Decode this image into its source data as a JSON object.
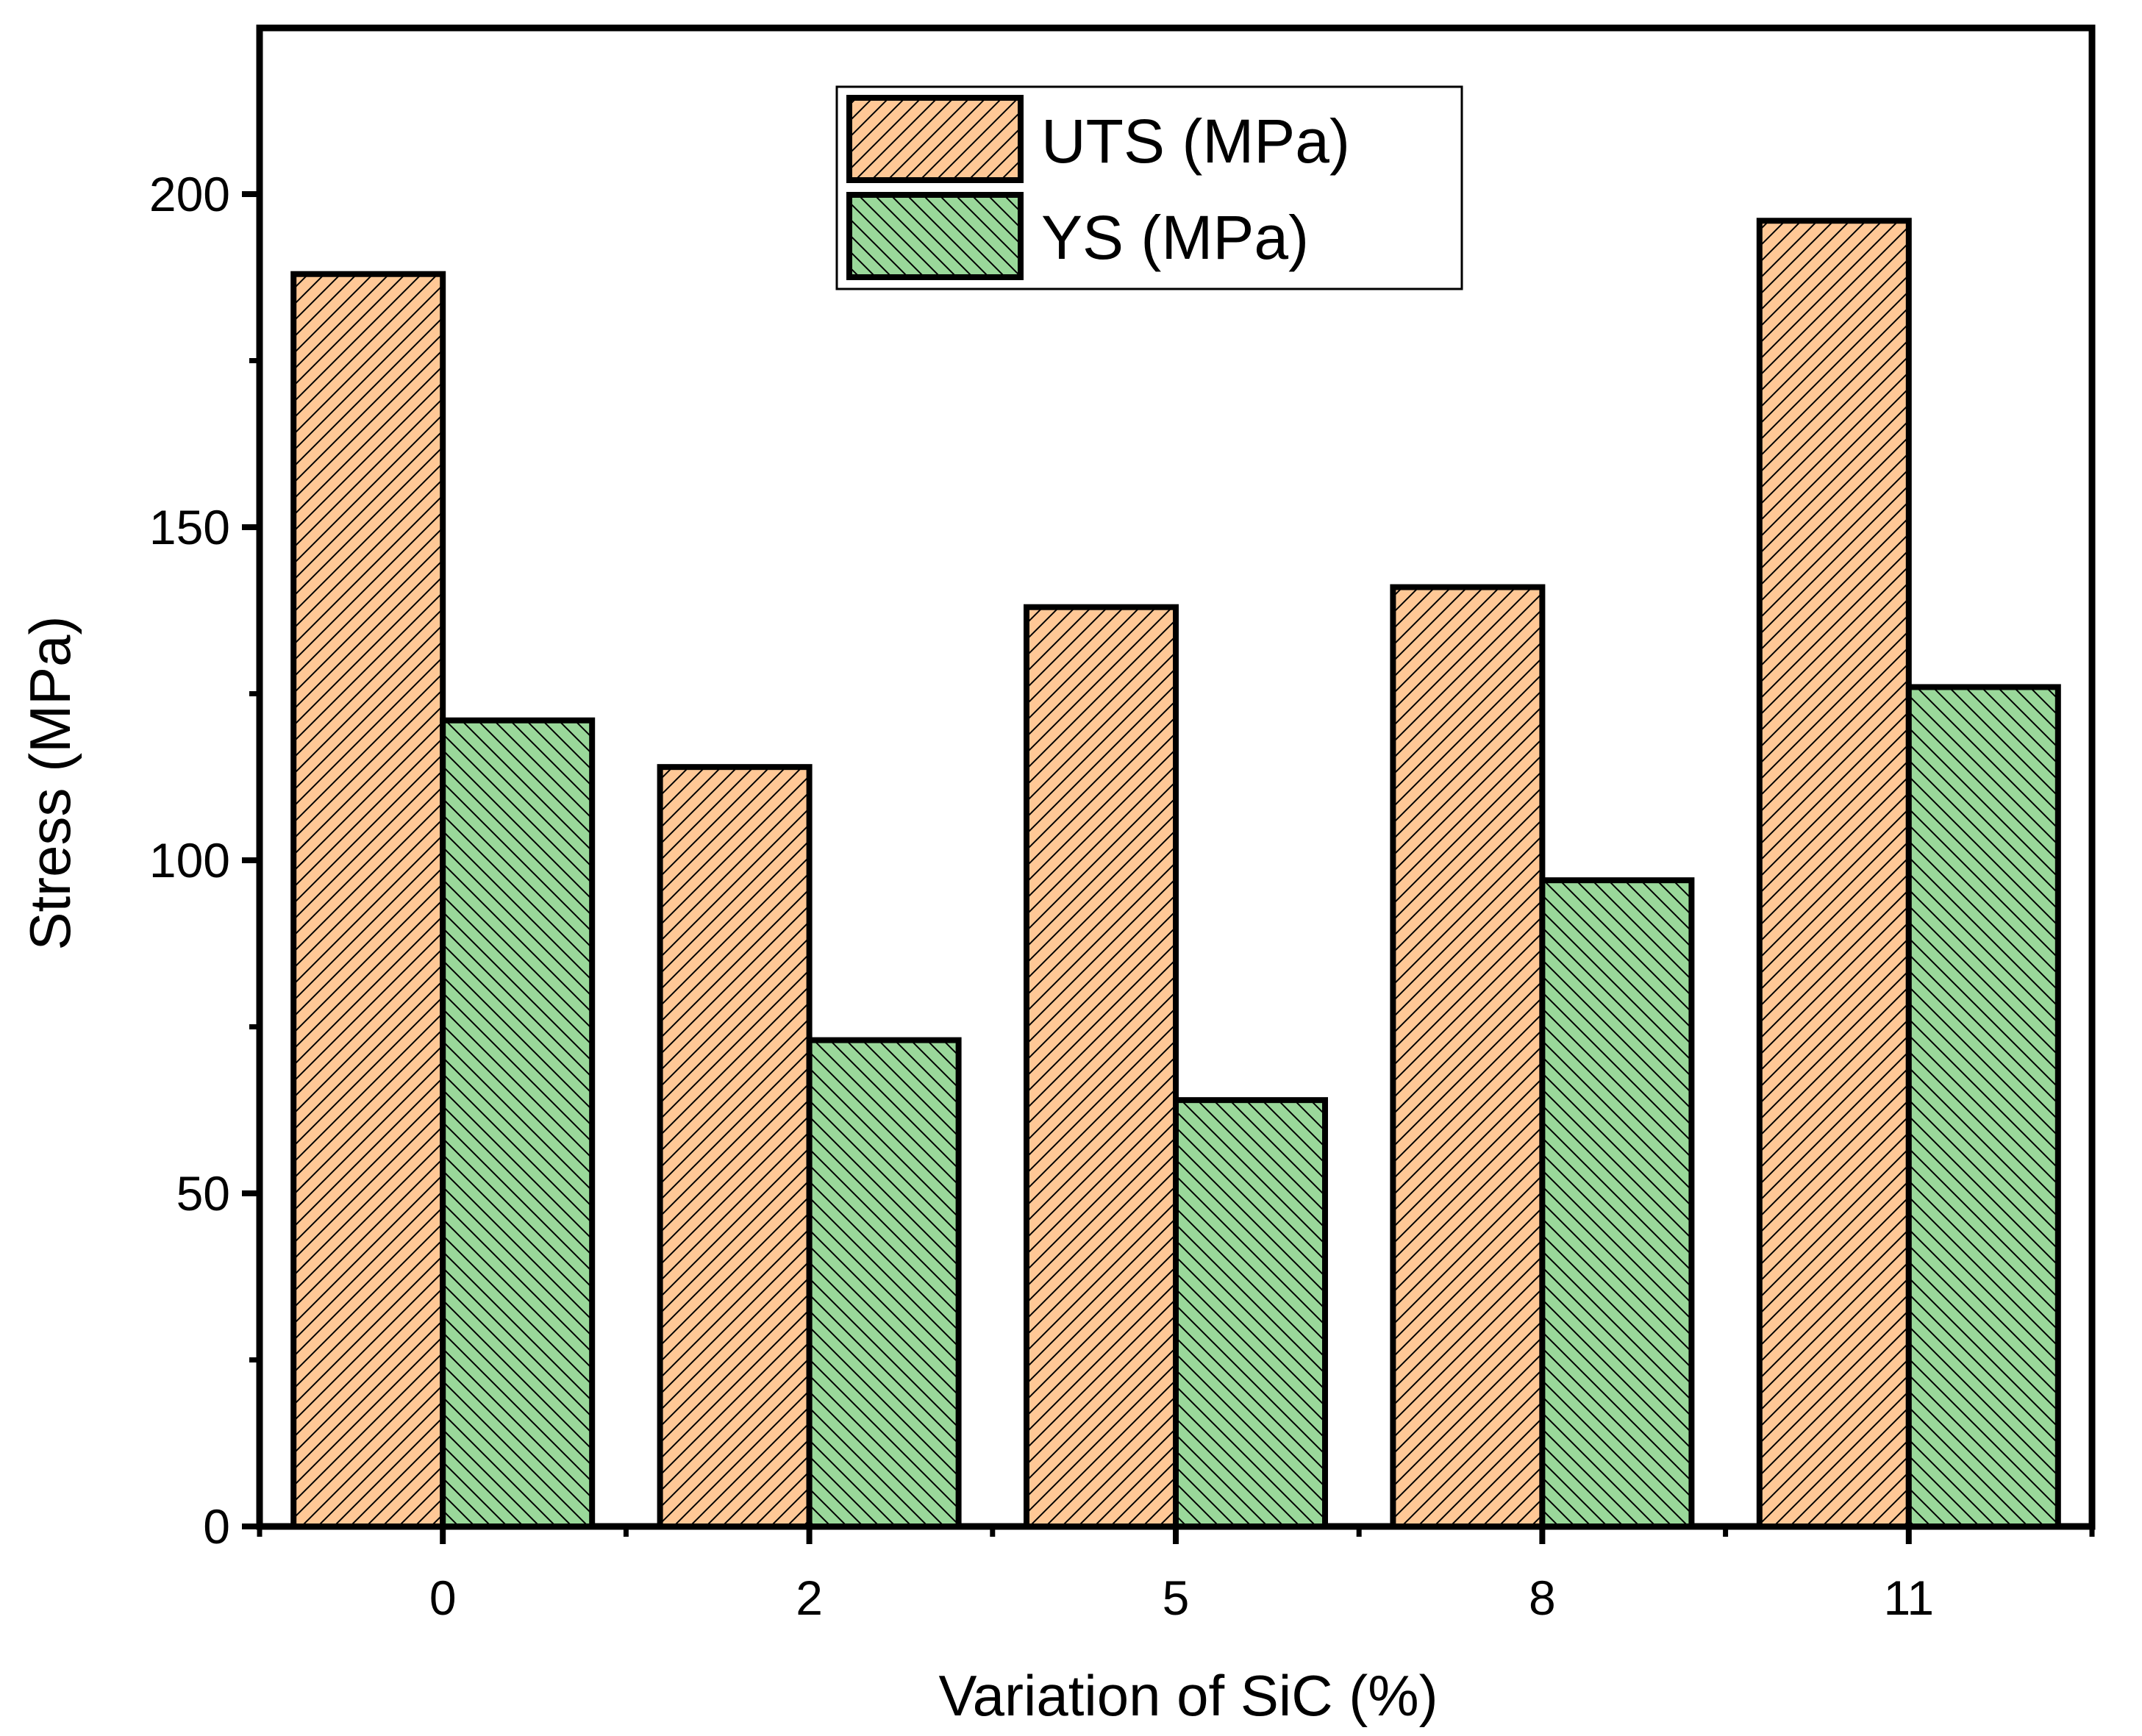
{
  "chart_data": {
    "type": "bar",
    "title": "",
    "xlabel": "Variation of SiC (%)",
    "ylabel": "Stress (MPa)",
    "categories": [
      "0",
      "2",
      "5",
      "8",
      "11"
    ],
    "ylim": [
      0,
      225
    ],
    "yticks": [
      0,
      50,
      100,
      150,
      200
    ],
    "yticks_minor": [
      25,
      75,
      125,
      175
    ],
    "grid": false,
    "legend_position": "top-center",
    "series": [
      {
        "name": "UTS (MPa)",
        "values": [
          188,
          114,
          138,
          141,
          196
        ],
        "color": "#FFC896",
        "hatch": "forward-diagonal"
      },
      {
        "name": "YS (MPa)",
        "values": [
          121,
          73,
          64,
          97,
          126
        ],
        "color": "#9AD89A",
        "hatch": "back-diagonal"
      }
    ]
  }
}
